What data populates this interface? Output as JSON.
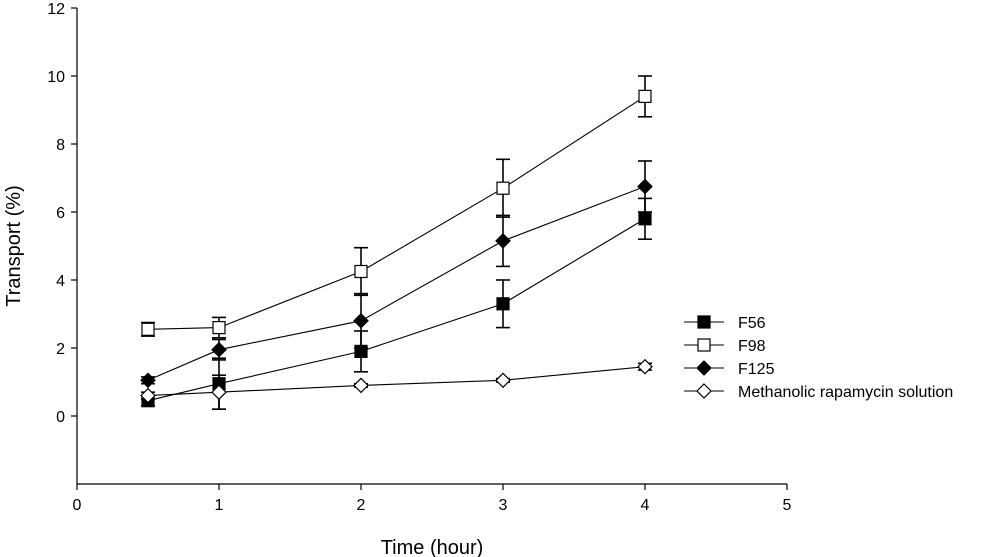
{
  "chart_data": {
    "type": "line",
    "title": "",
    "xlabel": "Time (hour)",
    "ylabel": "Transport (%)",
    "xlim": [
      0,
      5
    ],
    "ylim": [
      -2,
      12
    ],
    "xticks": [
      "0",
      "1",
      "2",
      "3",
      "4",
      "5"
    ],
    "yticks": [
      "0",
      "2",
      "4",
      "6",
      "8",
      "10",
      "12"
    ],
    "grid": false,
    "legend_position": "right",
    "x": [
      0.5,
      1,
      2,
      3,
      4
    ],
    "series": [
      {
        "name": "F56",
        "marker": "filled-square",
        "values": [
          0.45,
          0.95,
          1.9,
          3.3,
          5.8
        ],
        "error": [
          0.15,
          0.75,
          0.6,
          0.7,
          0.6
        ]
      },
      {
        "name": "F98",
        "marker": "open-square",
        "values": [
          2.55,
          2.6,
          4.25,
          6.7,
          9.4
        ],
        "error": [
          0.2,
          0.3,
          0.7,
          0.85,
          0.6
        ]
      },
      {
        "name": "F125",
        "marker": "filled-diamond",
        "values": [
          1.05,
          1.95,
          2.8,
          5.15,
          6.75
        ],
        "error": [
          0.1,
          0.3,
          0.8,
          0.75,
          0.75
        ]
      },
      {
        "name": "Methanolic rapamycin solution",
        "marker": "open-diamond",
        "values": [
          0.6,
          0.7,
          0.9,
          1.05,
          1.45
        ],
        "error": [
          0.1,
          0.5,
          0.05,
          0.05,
          0.1
        ]
      }
    ]
  }
}
